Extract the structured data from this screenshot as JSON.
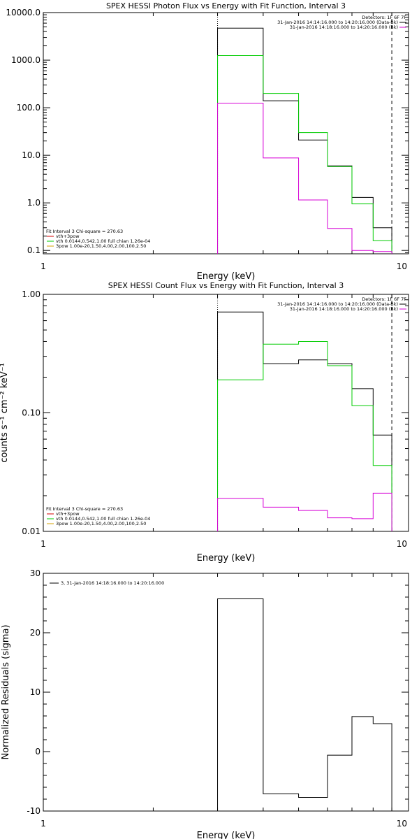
{
  "chart_data": [
    {
      "type": "line",
      "title": "SPEX HESSI Photon Flux vs Energy with Fit Function, Interval 3",
      "xlabel": "Energy (keV)",
      "ylabel": "",
      "xscale": "log",
      "yscale": "log",
      "xlim": [
        1,
        10
      ],
      "ylim": [
        0.085,
        10000
      ],
      "x_ticks": [
        "1",
        "10"
      ],
      "y_ticks": [
        "0.1",
        "1.0",
        "10.0",
        "100.0",
        "1000.0",
        "10000.0"
      ],
      "y_tick_values": [
        0.1,
        1,
        10,
        100,
        1000,
        10000
      ],
      "legend_top_right": [
        "Detectors: 1F 6F 7F",
        "31-Jan-2016 14:14:16.000 to 14:20:16.000 (Data-Bk)",
        "31-Jan-2016 14:18:16.000 to 14:20:16.000 (Bk)"
      ],
      "legend_bottom_left": [
        "Fit Interval 3   Chi-square = 270.63",
        "vth+3pow",
        "vth 0.0144,0.542,1.00  full chian 1.26e-04",
        "3pow 1.00e-20,1.50,4.00,2.00,100,2.50"
      ],
      "bin_edges": [
        3.0,
        4.0,
        5.0,
        6.0,
        7.0,
        8.0,
        9.0
      ],
      "series": [
        {
          "name": "Data-Bk",
          "color": "#000000",
          "values": [
            4700,
            140,
            21,
            6,
            1.3,
            0.3
          ]
        },
        {
          "name": "vth+3pow",
          "color": "#00cc00",
          "values": [
            1250,
            200,
            30,
            5.8,
            0.95,
            0.16
          ]
        },
        {
          "name": "Bk",
          "color": "#d600d6",
          "values": [
            125,
            8.8,
            1.15,
            0.29,
            0.1,
            0.095
          ]
        }
      ],
      "markers": [
        {
          "x": 3.0,
          "style": "dotted"
        },
        {
          "x": 9.0,
          "style": "dashed"
        }
      ]
    },
    {
      "type": "line",
      "title": "SPEX HESSI Count Flux vs Energy with Fit Function, Interval 3",
      "xlabel": "Energy (keV)",
      "ylabel": "counts s⁻¹ cm⁻² keV⁻¹",
      "xscale": "log",
      "yscale": "log",
      "xlim": [
        1,
        10
      ],
      "ylim": [
        0.01,
        1.0
      ],
      "x_ticks": [
        "1",
        "10"
      ],
      "y_ticks": [
        "0.01",
        "0.10",
        "1.00"
      ],
      "y_tick_values": [
        0.01,
        0.1,
        1.0
      ],
      "legend_top_right": [
        "Detectors: 1F 6F 7F",
        "31-Jan-2016 14:14:16.000 to 14:20:16.000 (Data-Bk)",
        "31-Jan-2016 14:18:16.000 to 14:20:16.000 (Bk)"
      ],
      "legend_bottom_left": [
        "Fit Interval 3   Chi-square = 270.63",
        "vth+3pow",
        "vth 0.0144,0.542,1.00  full chian 1.26e-04",
        "3pow 1.00e-20,1.50,4.00,2.00,100,2.50"
      ],
      "bin_edges": [
        3.0,
        4.0,
        5.0,
        6.0,
        7.0,
        8.0,
        9.0
      ],
      "series": [
        {
          "name": "Data-Bk",
          "color": "#000000",
          "values": [
            0.71,
            0.26,
            0.28,
            0.26,
            0.16,
            0.065
          ]
        },
        {
          "name": "vth+3pow",
          "color": "#00cc00",
          "values": [
            0.19,
            0.38,
            0.4,
            0.25,
            0.115,
            0.036
          ]
        },
        {
          "name": "Bk",
          "color": "#d600d6",
          "values": [
            0.019,
            0.016,
            0.015,
            0.013,
            0.0128,
            0.021
          ]
        }
      ],
      "markers": [
        {
          "x": 3.0,
          "style": "dotted"
        },
        {
          "x": 9.0,
          "style": "dashed"
        }
      ]
    },
    {
      "type": "line",
      "title": "",
      "xlabel": "Energy (keV)",
      "ylabel": "Normalized Residuals (sigma)",
      "xscale": "log",
      "yscale": "linear",
      "xlim": [
        1,
        10
      ],
      "ylim": [
        -10,
        30
      ],
      "x_ticks": [
        "1",
        "10"
      ],
      "y_ticks": [
        "-10",
        "0",
        "10",
        "20",
        "30"
      ],
      "y_tick_values": [
        -10,
        0,
        10,
        20,
        30
      ],
      "legend_top_left": [
        "3, 31-Jan-2016 14:18:16.000 to 14:20:16.000"
      ],
      "bin_edges": [
        3.0,
        4.0,
        5.0,
        6.0,
        7.0,
        8.0,
        9.0
      ],
      "series": [
        {
          "name": "",
          "color": "#000000",
          "values": [
            25.7,
            -7.1,
            -7.7,
            -0.6,
            5.9,
            4.7
          ]
        }
      ]
    }
  ]
}
